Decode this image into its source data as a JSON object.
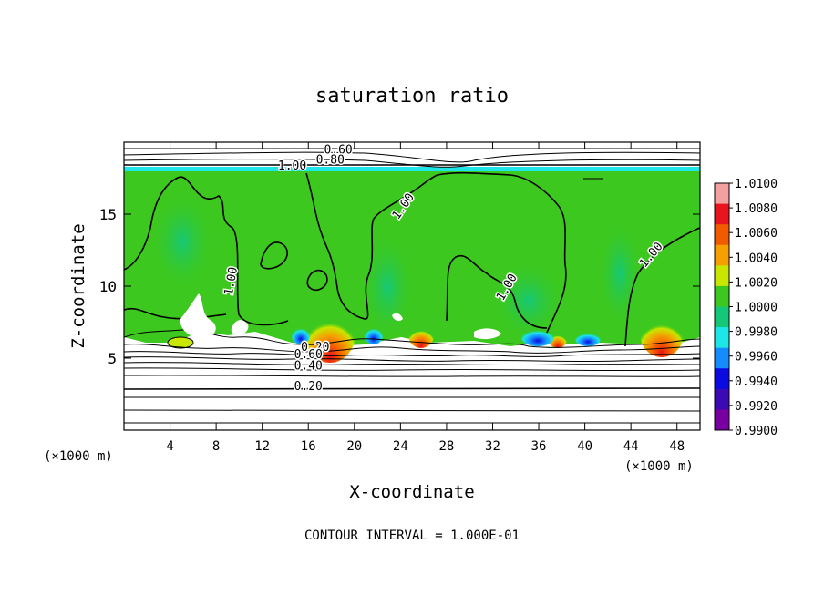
{
  "chart_data": {
    "type": "heatmap",
    "title": "saturation ratio",
    "xlabel": "X-coordinate",
    "ylabel": "Z-coordinate",
    "x_unit_label": "(×1000 m)",
    "y_unit_label": "(×1000 m)",
    "xlim": [
      0,
      50
    ],
    "ylim": [
      0,
      20
    ],
    "x_ticks": [
      "4",
      "8",
      "12",
      "16",
      "20",
      "24",
      "28",
      "32",
      "36",
      "40",
      "44",
      "48"
    ],
    "y_ticks": [
      "5",
      "10",
      "15"
    ],
    "footer": "CONTOUR INTERVAL = 1.000E-01",
    "colorbar": {
      "levels": [
        "1.0100",
        "1.0080",
        "1.0060",
        "1.0040",
        "1.0020",
        "1.0000",
        "0.9980",
        "0.9960",
        "0.9940",
        "0.9920",
        "0.9900"
      ],
      "colors": [
        "#f4a0a0",
        "#e8141e",
        "#f25a00",
        "#f5a000",
        "#c8e600",
        "#3cc81e",
        "#14c878",
        "#1ee6e6",
        "#148cff",
        "#0a0ae1",
        "#3c0ab4",
        "#7800a0"
      ]
    },
    "contour_labels": [
      {
        "text": "0.60",
        "x": 18.6,
        "y": 19.2
      },
      {
        "text": "0.80",
        "x": 17.9,
        "y": 18.5
      },
      {
        "text": "1.00",
        "x": 14.6,
        "y": 18.1
      },
      {
        "text": "1.00",
        "x": 24.5,
        "y": 15.4
      },
      {
        "text": "1.00",
        "x": 9.6,
        "y": 10.3
      },
      {
        "text": "1.00",
        "x": 33.5,
        "y": 9.8
      },
      {
        "text": "1.00",
        "x": 46.0,
        "y": 12.0
      },
      {
        "text": "0.20",
        "x": 16.6,
        "y": 5.5
      },
      {
        "text": "0.60",
        "x": 16.0,
        "y": 5.0
      },
      {
        "text": "0.40",
        "x": 16.0,
        "y": 4.2
      },
      {
        "text": "0.20",
        "x": 16.0,
        "y": 2.8
      }
    ]
  }
}
